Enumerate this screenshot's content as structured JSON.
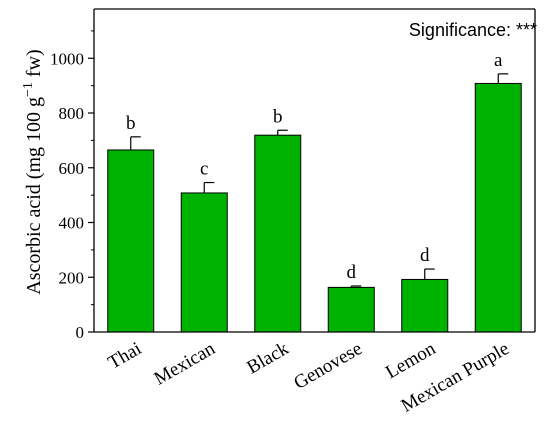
{
  "chart_data": {
    "type": "bar",
    "title": "",
    "xlabel": "",
    "ylabel": {
      "prefix": "Ascorbic acid (mg 100 g",
      "exponent": "−1",
      "suffix": " fw)"
    },
    "annotation": "Significance: ***",
    "categories": [
      "Thai",
      "Mexican",
      "Black",
      "Genovese",
      "Lemon",
      "Mexican Purple"
    ],
    "values": [
      665,
      508,
      719,
      163,
      192,
      908
    ],
    "errors": [
      48,
      38,
      18,
      5,
      38,
      35
    ],
    "letters": [
      "b",
      "c",
      "b",
      "d",
      "d",
      "a"
    ],
    "ylim": [
      0,
      1180
    ],
    "yticks": [
      0,
      200,
      400,
      600,
      800,
      1000
    ],
    "colors": {
      "bar": "#00b200",
      "bar_edge": "#000000"
    },
    "grid": false,
    "legend": "none"
  }
}
